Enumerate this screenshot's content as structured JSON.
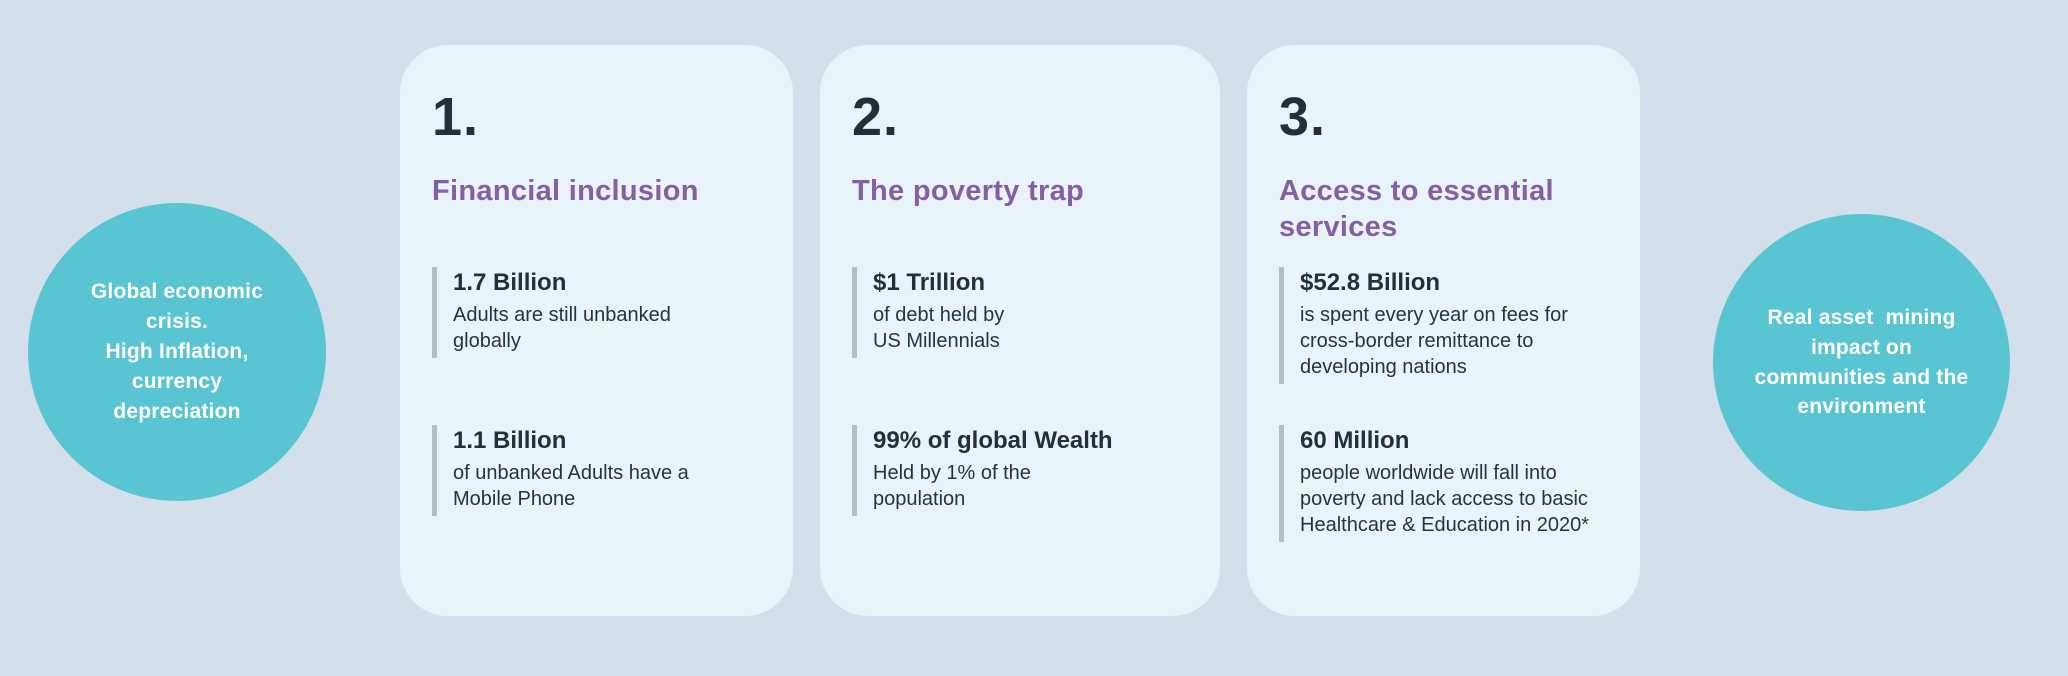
{
  "colors": {
    "background": "#d3e0ec",
    "card_background": "#e9f3fa",
    "circle_teal": "#5ac5d2",
    "heading_purple": "#855fa3",
    "text_dark": "#22303d",
    "stat_bar_gray": "#b6bfc6",
    "circle_text_white": "#ffffff"
  },
  "left_circle": {
    "text": "Global economic\ncrisis.\nHigh Inflation,\ncurrency\ndepreciation"
  },
  "right_circle": {
    "text": "Real asset  mining\nimpact on\ncommunities and the\nenvironment"
  },
  "cards": [
    {
      "number": "1.",
      "title": "Financial inclusion",
      "stats": [
        {
          "value": "1.7 Billion",
          "description": "Adults are still unbanked\nglobally"
        },
        {
          "value": "1.1 Billion",
          "description": "of unbanked Adults have a\nMobile Phone"
        }
      ]
    },
    {
      "number": "2.",
      "title": "The poverty trap",
      "stats": [
        {
          "value": "$1 Trillion",
          "description": "of debt held by\nUS Millennials"
        },
        {
          "value": "99% of global Wealth",
          "description": "Held by 1% of the\npopulation"
        }
      ]
    },
    {
      "number": "3.",
      "title": "Access to essential\nservices",
      "stats": [
        {
          "value": "$52.8 Billion",
          "description": "is spent every year on fees for\ncross-border remittance to\ndeveloping nations"
        },
        {
          "value": "60 Million",
          "description": "people worldwide will fall into\npoverty and lack access to basic\nHealthcare & Education in 2020*"
        }
      ]
    }
  ]
}
